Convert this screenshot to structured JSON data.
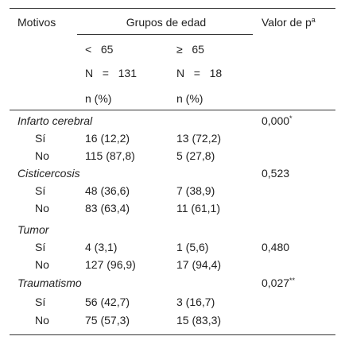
{
  "header": {
    "motivos": "Motivos",
    "groups": "Grupos de edad",
    "pvalue": "Valor de p",
    "pvalue_sup": "a",
    "subrows": [
      [
        "<   65",
        "≥   65"
      ],
      [
        "N   =   131",
        "N   =   18"
      ],
      [
        "n (%)",
        "n (%)"
      ]
    ]
  },
  "sections": [
    {
      "name": "Infarto cerebral",
      "p": "0,000",
      "p_sup": "*",
      "rows": [
        {
          "label": "Sí",
          "a": "16 (12,2)",
          "b": "13 (72,2)"
        },
        {
          "label": "No",
          "a": "115 (87,8)",
          "b": "5 (27,8)"
        }
      ]
    },
    {
      "name": "Cisticercosis",
      "p": "0,523",
      "rows": [
        {
          "label": "Sí",
          "a": "48 (36,6)",
          "b": "7 (38,9)"
        },
        {
          "label": "No",
          "a": "83 (63,4)",
          "b": "11 (61,1)"
        }
      ]
    },
    {
      "name": "Tumor",
      "rows": [
        {
          "label": "Sí",
          "a": "4 (3,1)",
          "b": "1 (5,6)",
          "p": "0,480"
        },
        {
          "label": "No",
          "a": "127 (96,9)",
          "b": "17 (94,4)"
        }
      ]
    },
    {
      "name": "Traumatismo",
      "p": "0,027",
      "p_sup": "**",
      "rows": [
        {
          "label": "Sí",
          "a": "56 (42,7)",
          "b": "3 (16,7)"
        },
        {
          "label": "No",
          "a": "75 (57,3)",
          "b": "15 (83,3)"
        }
      ]
    }
  ]
}
